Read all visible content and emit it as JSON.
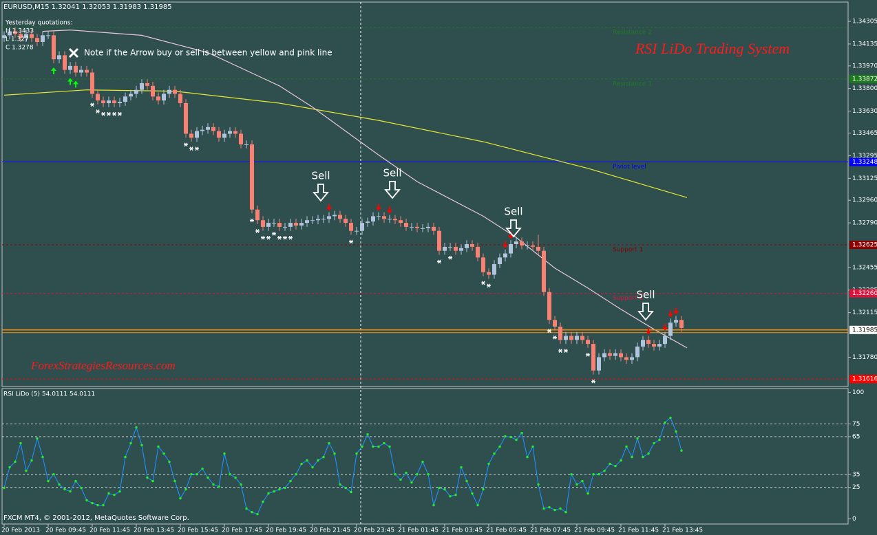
{
  "header": "EURUSD,M15  1.32041 1.32053 1.31983 1.31985",
  "yesterday": {
    "title": "Yesterday quotations:",
    "lines": [
      "H 1.3433",
      "L 1.327",
      "C 1.3278"
    ]
  },
  "note": "Note if the Arrow buy or sell is between yellow and pink line",
  "title": "RSI LiDo Trading System",
  "watermark": "ForexStrategiesResources.com",
  "footer": "FXCM MT4, © 2001-2012, MetaQuotes Software Corp.",
  "chart_data": [
    {
      "type": "candlestick",
      "xlim": [
        -0.75,
        153.25
      ],
      "xticks": [
        {
          "value": 0,
          "label": "20 Feb 2013"
        },
        {
          "value": 8,
          "label": "20 Feb 09:45"
        },
        {
          "value": 16,
          "label": "20 Feb 11:45"
        },
        {
          "value": 24,
          "label": "20 Feb 13:45"
        },
        {
          "value": 32,
          "label": "20 Feb 15:45"
        },
        {
          "value": 40,
          "label": "20 Feb 17:45"
        },
        {
          "value": 48,
          "label": "20 Feb 19:45"
        },
        {
          "value": 56,
          "label": "20 Feb 21:45"
        },
        {
          "value": 64,
          "label": "20 Feb 23:45"
        },
        {
          "value": 72,
          "label": "21 Feb 01:45"
        },
        {
          "value": 80,
          "label": "21 Feb 03:45"
        },
        {
          "value": 88,
          "label": "21 Feb 05:45"
        },
        {
          "value": 96,
          "label": "21 Feb 07:45"
        },
        {
          "value": 104,
          "label": "21 Feb 09:45"
        },
        {
          "value": 112,
          "label": "21 Feb 11:45"
        },
        {
          "value": 120,
          "label": "21 Feb 13:45"
        }
      ],
      "ylim": [
        1.3156,
        1.3445
      ],
      "yticks": [
        1.34305,
        1.34135,
        {
          "value": 1.3397,
          "label": "1.33970"
        },
        {
          "value": 1.338,
          "label": "1.33800"
        },
        {
          "value": 1.3363,
          "label": "1.33630"
        },
        1.33465,
        1.33295,
        1.33125,
        {
          "value": 1.3296,
          "label": "1.32960"
        },
        {
          "value": 1.3279,
          "label": "1.32790"
        },
        1.32455,
        1.32285,
        1.32115,
        {
          "value": 1.3178,
          "label": "1.31780"
        }
      ],
      "up_color": "#b0c4de",
      "down_color": "#fa8072",
      "open": [
        1.3418,
        1.342,
        1.3423,
        1.3421,
        1.3418,
        1.3421,
        1.3418,
        1.3415,
        1.342,
        1.342,
        1.3402,
        1.3405,
        1.3394,
        1.3397,
        1.3392,
        1.3394,
        1.3392,
        1.3376,
        1.3371,
        1.3369,
        1.3371,
        1.3369,
        1.337,
        1.3374,
        1.3376,
        1.3379,
        1.3384,
        1.3382,
        1.3374,
        1.3371,
        1.3376,
        1.3379,
        1.3376,
        1.3369,
        1.3346,
        1.3343,
        1.3348,
        1.3349,
        1.3351,
        1.3348,
        1.3343,
        1.3346,
        1.3348,
        1.3346,
        1.3338,
        1.3338,
        1.3289,
        1.3281,
        1.3276,
        1.3279,
        1.3279,
        1.3276,
        1.3276,
        1.3279,
        1.3277,
        1.3279,
        1.3281,
        1.3281,
        1.3282,
        1.3282,
        1.3284,
        1.3285,
        1.3282,
        1.3279,
        1.3273,
        1.3273,
        1.3279,
        1.328,
        1.3284,
        1.3284,
        1.3282,
        1.3282,
        1.3281,
        1.3279,
        1.3276,
        1.3276,
        1.3275,
        1.3275,
        1.3276,
        1.3273,
        1.3258,
        1.3261,
        1.3261,
        1.3258,
        1.326,
        1.3263,
        1.3261,
        1.3253,
        1.3242,
        1.324,
        1.3248,
        1.3253,
        1.3256,
        1.3263,
        1.3265,
        1.3262,
        1.3262,
        1.3261,
        1.3258,
        1.3227,
        1.3206,
        1.3201,
        1.3191,
        1.3194,
        1.3191,
        1.3194,
        1.3191,
        1.3188,
        1.3168,
        1.3178,
        1.3181,
        1.3179,
        1.3181,
        1.3178,
        1.3176,
        1.3178,
        1.3186,
        1.3191,
        1.3188,
        1.3186,
        1.3188,
        1.3194,
        1.3204,
        1.3206
      ],
      "high": [
        1.3423,
        1.3426,
        1.3426,
        1.3424,
        1.3424,
        1.3424,
        1.3421,
        1.3423,
        1.3423,
        1.3423,
        1.3408,
        1.3408,
        1.34,
        1.34,
        1.3397,
        1.3397,
        1.3395,
        1.3379,
        1.3374,
        1.3374,
        1.3374,
        1.3373,
        1.3377,
        1.3379,
        1.3382,
        1.3387,
        1.3387,
        1.3385,
        1.3377,
        1.3379,
        1.3382,
        1.3382,
        1.3379,
        1.3372,
        1.3349,
        1.3351,
        1.3352,
        1.3354,
        1.3354,
        1.3351,
        1.3349,
        1.3351,
        1.3351,
        1.3349,
        1.3341,
        1.3341,
        1.3292,
        1.3284,
        1.3282,
        1.3282,
        1.3282,
        1.3279,
        1.3282,
        1.3282,
        1.3282,
        1.3284,
        1.3284,
        1.3285,
        1.3285,
        1.3287,
        1.3288,
        1.3288,
        1.3285,
        1.3282,
        1.3276,
        1.3282,
        1.3283,
        1.3287,
        1.3287,
        1.3287,
        1.3285,
        1.3285,
        1.3284,
        1.3282,
        1.3279,
        1.3279,
        1.3278,
        1.3279,
        1.3279,
        1.3276,
        1.3264,
        1.3264,
        1.3264,
        1.3263,
        1.3266,
        1.3266,
        1.3264,
        1.3256,
        1.3245,
        1.3251,
        1.3256,
        1.3259,
        1.3266,
        1.3268,
        1.3268,
        1.3265,
        1.3265,
        1.327,
        1.3261,
        1.323,
        1.3209,
        1.3204,
        1.3197,
        1.3197,
        1.3197,
        1.3197,
        1.3194,
        1.3191,
        1.3181,
        1.3184,
        1.3184,
        1.3184,
        1.3184,
        1.3181,
        1.3181,
        1.3189,
        1.3194,
        1.3194,
        1.3191,
        1.3191,
        1.3197,
        1.3207,
        1.3209,
        1.3209
      ],
      "low": [
        1.3415,
        1.3417,
        1.3418,
        1.3415,
        1.3415,
        1.3415,
        1.3412,
        1.3412,
        1.3417,
        1.3399,
        1.3399,
        1.3391,
        1.3391,
        1.3389,
        1.3389,
        1.3389,
        1.3373,
        1.3368,
        1.3366,
        1.3366,
        1.3366,
        1.3366,
        1.3367,
        1.3371,
        1.3373,
        1.3376,
        1.3379,
        1.3371,
        1.3368,
        1.3368,
        1.3373,
        1.3373,
        1.3366,
        1.3343,
        1.334,
        1.334,
        1.3345,
        1.3346,
        1.3345,
        1.334,
        1.334,
        1.3343,
        1.3343,
        1.3335,
        1.3335,
        1.3286,
        1.3278,
        1.3273,
        1.3273,
        1.3276,
        1.3273,
        1.3273,
        1.3273,
        1.3274,
        1.3274,
        1.3276,
        1.3278,
        1.3278,
        1.3279,
        1.3279,
        1.3281,
        1.3279,
        1.3276,
        1.327,
        1.327,
        1.327,
        1.3276,
        1.3277,
        1.3281,
        1.3279,
        1.3279,
        1.3278,
        1.3276,
        1.3273,
        1.3273,
        1.3272,
        1.3272,
        1.3272,
        1.327,
        1.3255,
        1.3255,
        1.3258,
        1.3255,
        1.3255,
        1.3257,
        1.3258,
        1.325,
        1.3239,
        1.3237,
        1.3237,
        1.3245,
        1.325,
        1.3253,
        1.326,
        1.3259,
        1.3259,
        1.3258,
        1.3255,
        1.3224,
        1.3203,
        1.3198,
        1.3188,
        1.3188,
        1.3188,
        1.3188,
        1.3188,
        1.3185,
        1.3165,
        1.3165,
        1.3175,
        1.3176,
        1.3176,
        1.3175,
        1.3173,
        1.3173,
        1.3175,
        1.3183,
        1.3185,
        1.3183,
        1.3183,
        1.3185,
        1.3191,
        1.3201,
        1.3197
      ],
      "close": [
        1.342,
        1.3423,
        1.3421,
        1.3418,
        1.3421,
        1.3418,
        1.3415,
        1.342,
        1.342,
        1.3402,
        1.3405,
        1.3394,
        1.3397,
        1.3392,
        1.3394,
        1.3392,
        1.3376,
        1.3371,
        1.3369,
        1.3371,
        1.3369,
        1.337,
        1.3374,
        1.3376,
        1.3379,
        1.3384,
        1.3382,
        1.3374,
        1.3371,
        1.3376,
        1.3379,
        1.3376,
        1.3369,
        1.3346,
        1.3343,
        1.3348,
        1.3349,
        1.3351,
        1.3348,
        1.3343,
        1.3346,
        1.3348,
        1.3346,
        1.3338,
        1.3338,
        1.3289,
        1.3281,
        1.3276,
        1.3279,
        1.3279,
        1.3276,
        1.3276,
        1.3279,
        1.3277,
        1.3279,
        1.3281,
        1.3281,
        1.3282,
        1.3282,
        1.3284,
        1.3285,
        1.3282,
        1.3279,
        1.3273,
        1.3273,
        1.3279,
        1.328,
        1.3284,
        1.3284,
        1.3282,
        1.3282,
        1.3281,
        1.3279,
        1.3276,
        1.3276,
        1.3275,
        1.3275,
        1.3276,
        1.3273,
        1.3258,
        1.3261,
        1.3261,
        1.3258,
        1.326,
        1.3263,
        1.3261,
        1.3253,
        1.3242,
        1.324,
        1.3248,
        1.3253,
        1.3256,
        1.3263,
        1.3265,
        1.3262,
        1.3262,
        1.3261,
        1.3258,
        1.3227,
        1.3206,
        1.3201,
        1.3191,
        1.3194,
        1.3191,
        1.3194,
        1.3191,
        1.3188,
        1.3168,
        1.3178,
        1.3181,
        1.3179,
        1.3181,
        1.3178,
        1.3176,
        1.3178,
        1.3186,
        1.3191,
        1.3188,
        1.3186,
        1.3188,
        1.3194,
        1.3204,
        1.3206,
        1.32
      ],
      "lines": [
        {
          "color": "#e6e633",
          "x": [
            0,
            15,
            31,
            50,
            68,
            87,
            106,
            124
          ],
          "values": [
            1.3375,
            1.3379,
            1.3378,
            1.3369,
            1.3356,
            1.334,
            1.332,
            1.3298
          ]
        },
        {
          "color": "#e8c8d8",
          "x": [
            7,
            12,
            25,
            37,
            50,
            56,
            62,
            68,
            75,
            87,
            93,
            100,
            106,
            112,
            118,
            124
          ],
          "values": [
            1.3423,
            1.3424,
            1.342,
            1.3407,
            1.3382,
            1.3366,
            1.3348,
            1.333,
            1.331,
            1.3284,
            1.3268,
            1.3245,
            1.323,
            1.3214,
            1.3199,
            1.3185
          ]
        }
      ],
      "levels": [
        {
          "name": "Resistance 2",
          "value": 1.3426,
          "color": "#1f7a1f",
          "dashed": true,
          "box": false
        },
        {
          "name": "Resistance 1",
          "value": 1.33872,
          "color": "#1f7a1f",
          "dashed": true,
          "box": true
        },
        {
          "name": "Piviot level",
          "value": 1.33248,
          "color": "#0000ff",
          "dashed": false,
          "box": true
        },
        {
          "name": "Support 1",
          "value": 1.32625,
          "color": "#8b0000",
          "dashed": true,
          "box": true
        },
        {
          "name": "Support 2",
          "value": 1.3226,
          "label": "1.32260",
          "color": "#dc143c",
          "dashed": true,
          "box": true
        },
        {
          "value": 1.31616,
          "color": "#ff0000",
          "dashed": true,
          "box": true
        }
      ],
      "current_price": {
        "value": 1.31985,
        "color": "#ff8c00"
      },
      "stars": [
        16,
        17,
        18,
        19,
        20,
        21,
        33,
        34,
        35,
        45,
        46,
        47,
        48,
        49,
        50,
        51,
        52,
        63,
        79,
        81,
        87,
        88,
        99,
        100,
        101,
        102,
        106,
        107
      ],
      "sell_arrows": [
        59,
        68,
        70,
        91,
        92,
        117,
        120,
        121,
        122
      ],
      "buy_arrows": [
        9,
        12,
        13
      ],
      "annotations": [
        "Sell",
        "Sell",
        "Sell",
        "Sell"
      ]
    },
    {
      "type": "line",
      "label": "RSI LiDo (5) 54.0111 54.0111",
      "xlim": [
        -0.75,
        153.25
      ],
      "ylim": [
        -4,
        103
      ],
      "yticks": [
        0,
        25,
        35,
        65,
        75,
        100
      ],
      "levels": [
        25,
        35,
        65,
        75
      ],
      "series": [
        {
          "color": "#1e90ff",
          "marker_color": "#22ee22",
          "values": [
            24.5,
            40.8,
            45.1,
            59.8,
            38,
            46.2,
            63.6,
            48.9,
            29.9,
            35.3,
            27.2,
            23.4,
            21.7,
            29.9,
            24.5,
            14.7,
            12.5,
            10.9,
            10.9,
            20.1,
            19,
            21.7,
            48.9,
            59.8,
            72.3,
            58.2,
            32.6,
            29.9,
            57.1,
            51.6,
            45.1,
            29.9,
            16.3,
            23.4,
            35.3,
            35.3,
            39.7,
            32.6,
            27.2,
            25.5,
            51.6,
            35.3,
            32.6,
            27.2,
            8.2,
            5.4,
            3.8,
            13.6,
            20.1,
            21.7,
            23.4,
            24.5,
            29.9,
            35.3,
            43.5,
            46.2,
            40.8,
            46.2,
            48.9,
            59.8,
            51.6,
            27.2,
            24.5,
            21.2,
            51.6,
            57.1,
            66.8,
            57.1,
            57.1,
            59.8,
            57.1,
            35.3,
            31,
            36.4,
            28.8,
            35.3,
            45.1,
            35.3,
            10.9,
            24.5,
            23.4,
            17.9,
            19,
            40.8,
            29.9,
            20.1,
            10.9,
            23.4,
            43.5,
            51.6,
            57.1,
            65.2,
            64.7,
            62.5,
            67.9,
            48.9,
            57.1,
            27.2,
            8.2,
            9.2,
            7.1,
            8.2,
            5.4,
            35.3,
            27.2,
            29.9,
            20.1,
            35.3,
            35.3,
            38,
            43.5,
            41.8,
            46.2,
            57.1,
            48.9,
            63.6,
            48.9,
            51.6,
            59.8,
            62.5,
            76.1,
            79.9,
            69,
            54.0111
          ]
        }
      ]
    }
  ]
}
